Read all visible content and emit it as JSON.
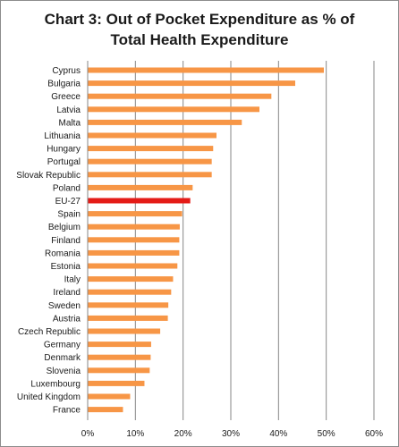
{
  "chart_data": {
    "type": "bar",
    "orientation": "horizontal",
    "title_line1": "Chart 3: Out of Pocket Expenditure as % of",
    "title_line2": "Total Health Expenditure",
    "xlim": [
      0,
      60
    ],
    "xticks": [
      "0%",
      "10%",
      "20%",
      "30%",
      "40%",
      "50%",
      "60%"
    ],
    "grid": "vertical",
    "categories": [
      "Cyprus",
      "Bulgaria",
      "Greece",
      "Latvia",
      "Malta",
      "Lithuania",
      "Hungary",
      "Portugal",
      "Slovak Republic",
      "Poland",
      "EU-27",
      "Spain",
      "Belgium",
      "Finland",
      "Romania",
      "Estonia",
      "Italy",
      "Ireland",
      "Sweden",
      "Austria",
      "Czech Republic",
      "Germany",
      "Denmark",
      "Slovenia",
      "Luxembourg",
      "United Kingdom",
      "France"
    ],
    "values": [
      49.5,
      43.5,
      38.5,
      36.0,
      32.3,
      27.0,
      26.3,
      26.0,
      26.0,
      22.0,
      21.5,
      19.8,
      19.3,
      19.2,
      19.2,
      18.8,
      17.9,
      17.5,
      16.9,
      16.8,
      15.2,
      13.3,
      13.2,
      13.0,
      11.9,
      8.9,
      7.4
    ],
    "colors": {
      "default": "#f79646",
      "highlight": "#e41b17",
      "grid": "#878787"
    },
    "highlight_category": "EU-27"
  }
}
